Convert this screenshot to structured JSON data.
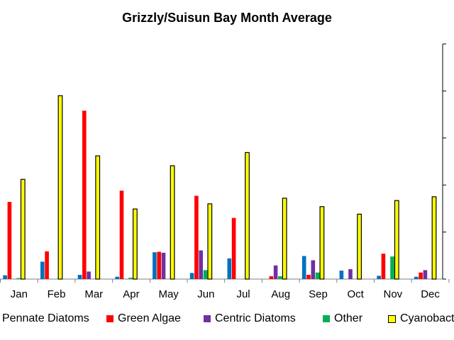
{
  "chart_data": {
    "type": "bar",
    "title": "Grizzly/Suisun Bay Month Average",
    "categories": [
      "Jan",
      "Feb",
      "Mar",
      "Apr",
      "May",
      "Jun",
      "Jul",
      "Aug",
      "Sep",
      "Oct",
      "Nov",
      "Dec"
    ],
    "ylim": [
      0,
      50
    ],
    "grid": false,
    "legend_position": "bottom",
    "series": [
      {
        "name": "Pennate Diatoms",
        "color": "#0070C0",
        "outline": false,
        "values": [
          0.8,
          3.7,
          0.9,
          0.5,
          5.7,
          1.3,
          4.4,
          0,
          4.9,
          1.8,
          0.7,
          0.5
        ]
      },
      {
        "name": "Green Algae",
        "color": "#FF0000",
        "outline": false,
        "values": [
          16.4,
          5.9,
          35.8,
          18.8,
          5.8,
          17.7,
          13.0,
          0.6,
          0.9,
          0,
          5.4,
          1.4
        ]
      },
      {
        "name": "Centric Diatoms",
        "color": "#7030A0",
        "outline": false,
        "values": [
          0,
          0,
          1.6,
          0,
          5.6,
          6.1,
          0,
          2.9,
          4.0,
          2.1,
          0,
          1.9
        ]
      },
      {
        "name": "Other",
        "color": "#00B050",
        "outline": false,
        "values": [
          0.2,
          0,
          0,
          0.3,
          0,
          1.9,
          0,
          0.6,
          1.4,
          0,
          4.8,
          0
        ]
      },
      {
        "name": "Cyanobacteria",
        "color": "#FFFF00",
        "outline": true,
        "values": [
          21.2,
          39.0,
          26.2,
          14.9,
          24.1,
          16.0,
          26.9,
          17.2,
          15.4,
          13.8,
          16.7,
          17.5
        ]
      }
    ]
  }
}
